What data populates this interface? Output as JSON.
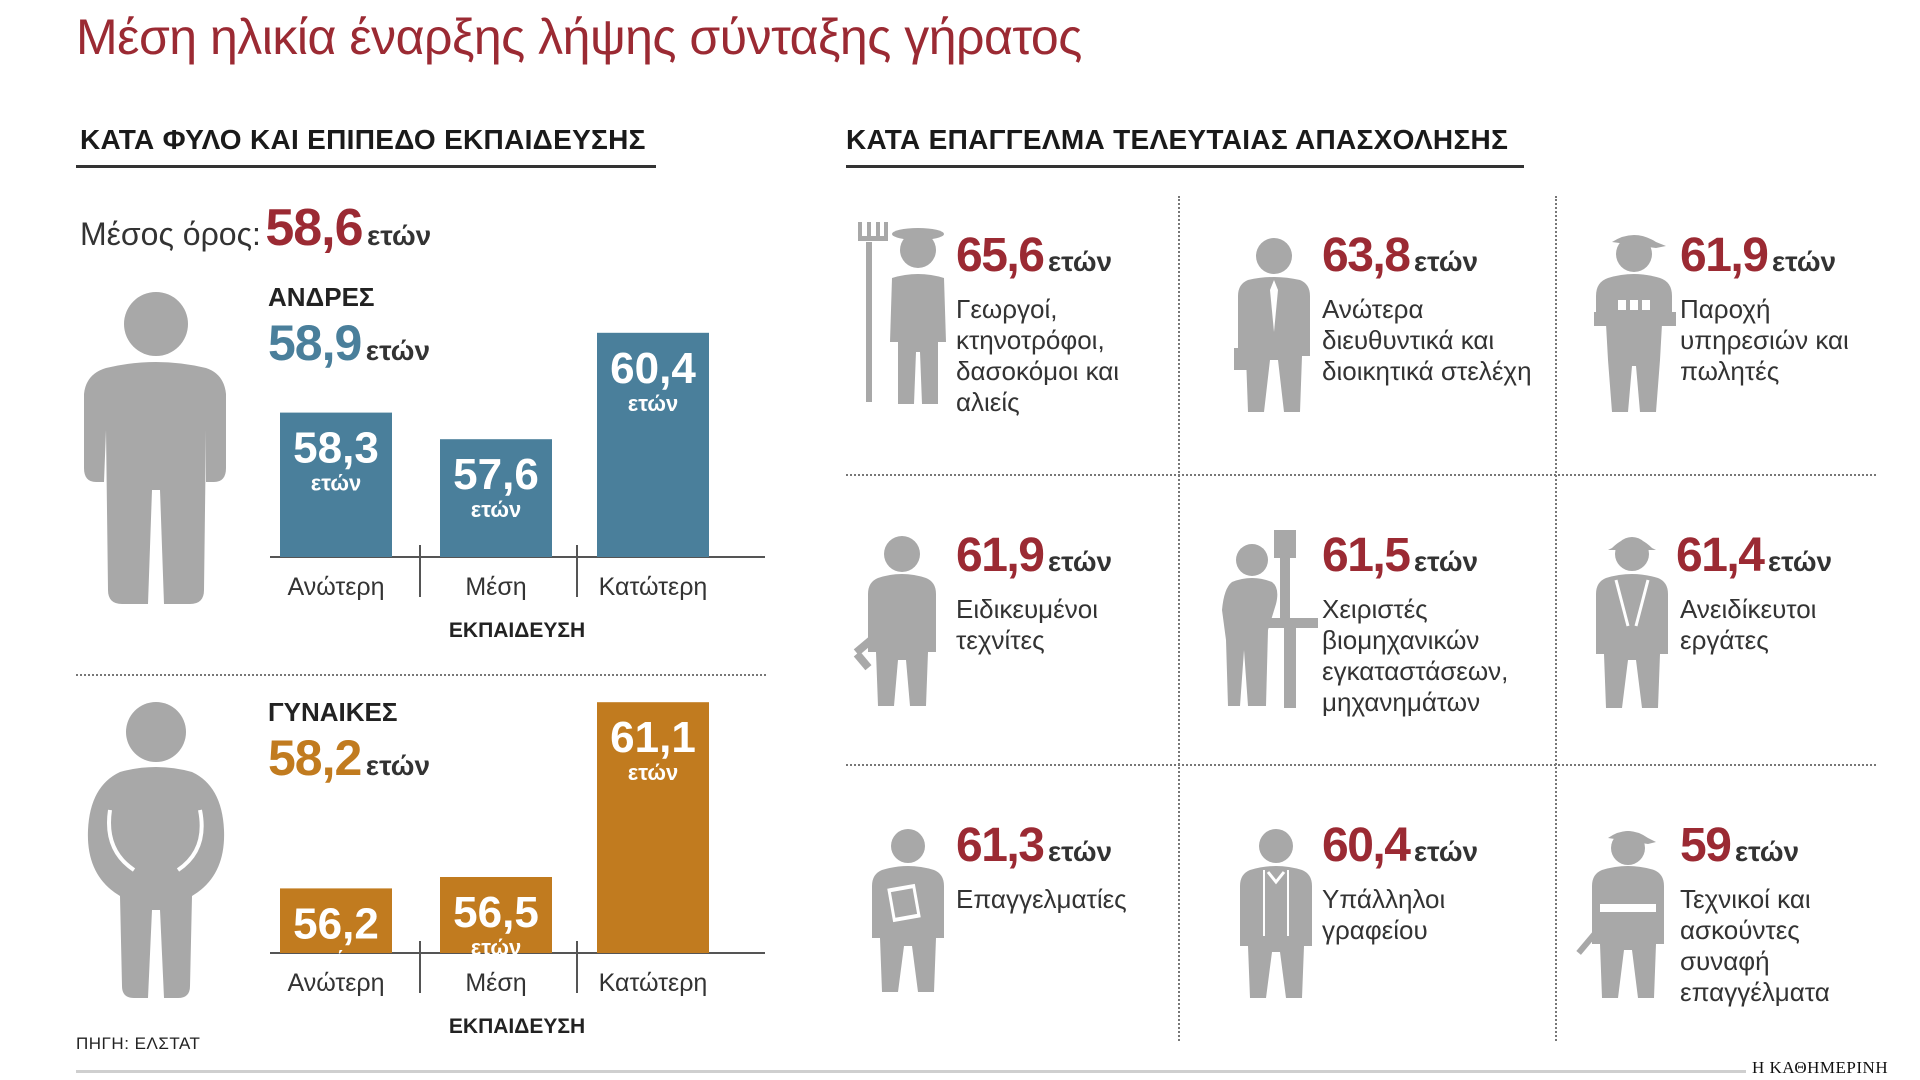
{
  "title": "Μέση ηλικία έναρξης λήψης σύνταξης γήρατος",
  "left_section": {
    "heading": "ΚΑΤΑ ΦΥΛΟ ΚΑΙ ΕΠΙΠΕΔΟ ΕΚΠΑΙΔΕΥΣΗΣ",
    "average_label": "Μέσος όρος:",
    "average_value": "58,6",
    "unit": "ετών"
  },
  "right_section": {
    "heading": "ΚΑΤΑ ΕΠΑΓΓΕΛΜΑ ΤΕΛΕΥΤΑΙΑΣ ΑΠΑΣΧΟΛΗΣΗΣ"
  },
  "colors": {
    "title": "#9b2a33",
    "men": "#4a7f9b",
    "women": "#c17b1f",
    "icon": "#a8a8a8"
  },
  "chart_data": [
    {
      "type": "bar",
      "group": "ΑΝΔΡΕΣ",
      "group_average": "58,9",
      "unit": "ετών",
      "xlabel": "ΕΚΠΑΙΔΕΥΣΗ",
      "categories": [
        "Ανώτερη",
        "Μέση",
        "Κατώτερη"
      ],
      "values": [
        58.3,
        57.6,
        60.4
      ],
      "value_labels": [
        "58,3",
        "57,6",
        "60,4"
      ],
      "color": "#4a7f9b",
      "icon": "man-icon"
    },
    {
      "type": "bar",
      "group": "ΓΥΝΑΙΚΕΣ",
      "group_average": "58,2",
      "unit": "ετών",
      "xlabel": "ΕΚΠΑΙΔΕΥΣΗ",
      "categories": [
        "Ανώτερη",
        "Μέση",
        "Κατώτερη"
      ],
      "values": [
        56.2,
        56.5,
        61.1
      ],
      "value_labels": [
        "56,2",
        "56,5",
        "61,1"
      ],
      "color": "#c17b1f",
      "icon": "woman-icon"
    },
    {
      "type": "table",
      "unit": "ετών",
      "occupations": [
        {
          "value": "65,6",
          "label": "Γεωργοί, κτηνοτρόφοι, δασοκόμοι και αλιείς",
          "icon": "farmer-icon"
        },
        {
          "value": "63,8",
          "label": "Ανώτερα διευθυντικά και διοικητικά στελέχη",
          "icon": "manager-icon"
        },
        {
          "value": "61,9",
          "label": "Παροχή υπηρεσιών και πωλητές",
          "icon": "vendor-icon"
        },
        {
          "value": "61,9",
          "label": "Ειδικευμένοι τεχνίτες",
          "icon": "craftsman-icon"
        },
        {
          "value": "61,5",
          "label": "Χειριστές βιομηχανικών εγκαταστάσεων, μηχανημάτων",
          "icon": "machine-operator-icon"
        },
        {
          "value": "61,4",
          "label": "Ανειδίκευτοι εργάτες",
          "icon": "laborer-icon"
        },
        {
          "value": "61,3",
          "label": "Επαγγελματίες",
          "icon": "professional-icon"
        },
        {
          "value": "60,4",
          "label": "Υπάλληλοι γραφείου",
          "icon": "office-clerk-icon"
        },
        {
          "value": "59",
          "label": "Τεχνικοί και ασκούντες συναφή επαγγέλματα",
          "icon": "technician-icon"
        }
      ]
    }
  ],
  "footer": {
    "source": "ΠΗΓΗ: ΕΛΣΤΑΤ",
    "publisher": "Η ΚΑΘΗΜΕΡΙΝΗ"
  }
}
